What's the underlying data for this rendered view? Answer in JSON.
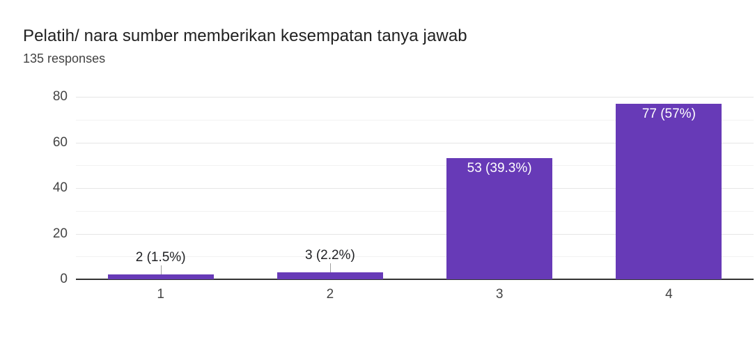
{
  "header": {
    "title": "Pelatih/ nara sumber memberikan kesempatan tanya jawab",
    "responses": "135 responses"
  },
  "chart_data": {
    "type": "bar",
    "title": "Pelatih/ nara sumber memberikan kesempatan tanya jawab",
    "subtitle": "135 responses",
    "categories": [
      "1",
      "2",
      "3",
      "4"
    ],
    "values": [
      2,
      3,
      53,
      77
    ],
    "bar_labels": [
      "2 (1.5%)",
      "3 (2.2%)",
      "53 (39.3%)",
      "77 (57%)"
    ],
    "ylim": [
      0,
      80
    ],
    "yticks": [
      0,
      20,
      40,
      60,
      80
    ],
    "minor_gridlines": [
      10,
      30,
      50,
      70
    ],
    "grid": true,
    "legend": "none",
    "xlabel": "",
    "ylabel": "",
    "colors": {
      "bar": "#673ab7",
      "annotation_inside": "#ffffff",
      "annotation_outside": "#202124",
      "axis_label": "#444444",
      "gridline_major": "#e6e6e6",
      "gridline_minor": "#f2f2f2",
      "baseline": "#333333",
      "leader_line": "#9e9e9e",
      "background": "#ffffff"
    }
  }
}
